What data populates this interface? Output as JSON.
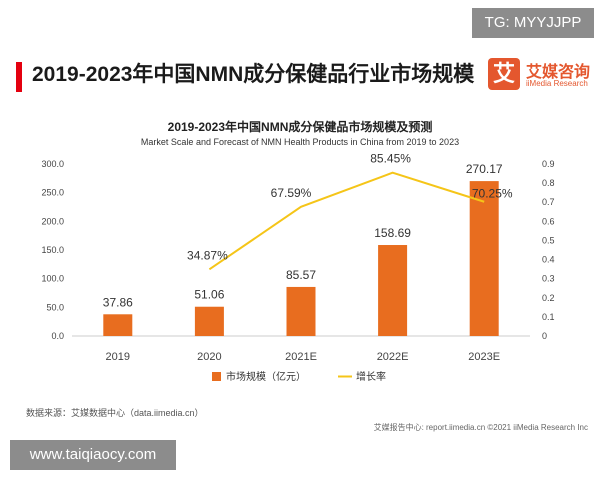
{
  "badge": {
    "text": "TG: MYYJJPP"
  },
  "header": {
    "title": "2019-2023年中国NMN成分保健品行业市场规模"
  },
  "logo": {
    "mark": "艾",
    "cn": "艾媒咨询",
    "en": "iiMedia Research"
  },
  "chart_data": {
    "type": "bar",
    "title": "2019-2023年中国NMN成分保健品市场规模及预测",
    "subtitle": "Market Scale and Forecast of NMN Health Products in China from 2019 to 2023",
    "categories": [
      "2019",
      "2020",
      "2021E",
      "2022E",
      "2023E"
    ],
    "series": [
      {
        "name": "市场规模（亿元）",
        "type": "bar",
        "axis": "left",
        "values": [
          37.86,
          51.06,
          85.57,
          158.69,
          270.17
        ],
        "labels": [
          "37.86",
          "51.06",
          "85.57",
          "158.69",
          "270.17"
        ]
      },
      {
        "name": "增长率",
        "type": "line",
        "axis": "right",
        "values": [
          null,
          0.3487,
          0.6759,
          0.8545,
          0.7025
        ],
        "labels": [
          "",
          "34.87%",
          "67.59%",
          "85.45%",
          "70.25%"
        ]
      }
    ],
    "left_axis": {
      "ylim": [
        0,
        300
      ],
      "ticks": [
        "0.0",
        "50.0",
        "100.0",
        "150.0",
        "200.0",
        "250.0",
        "300.0"
      ]
    },
    "right_axis": {
      "ylim": [
        0,
        0.9
      ],
      "ticks": [
        "0",
        "0.1",
        "0.2",
        "0.3",
        "0.4",
        "0.5",
        "0.6",
        "0.7",
        "0.8",
        "0.9"
      ]
    },
    "grid": false,
    "legend": "bottom-center",
    "colors": {
      "bar": "#e86d1f",
      "line": "#f5c518"
    }
  },
  "footer": {
    "source": "数据来源：艾媒数据中心（data.iimedia.cn）",
    "note": "艾媒报告中心: report.iimedia.cn  ©2021  iiMedia Research Inc"
  },
  "watermark": {
    "text": "www.taiqiaocy.com"
  }
}
